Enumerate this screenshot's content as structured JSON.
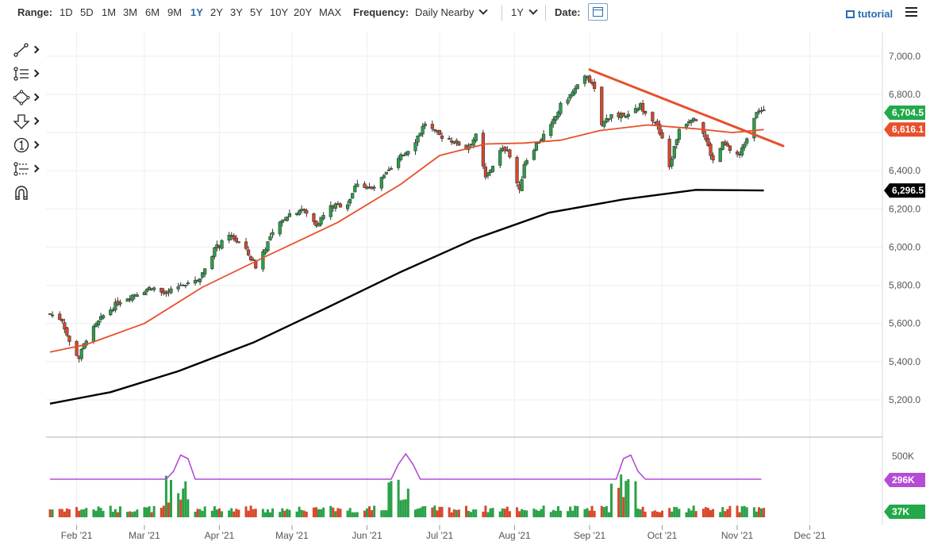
{
  "toolbar": {
    "range_label": "Range:",
    "ranges": [
      "1D",
      "5D",
      "1M",
      "3M",
      "6M",
      "9M",
      "1Y",
      "2Y",
      "3Y",
      "5Y",
      "10Y",
      "20Y",
      "MAX"
    ],
    "active_range": "1Y",
    "frequency_label": "Frequency:",
    "frequency_value": "Daily Nearby",
    "period_value": "1Y",
    "date_label": "Date:",
    "tutorial_label": "tutorial"
  },
  "tools": {
    "icons": [
      "trendline-icon",
      "fibonacci-icon",
      "shapes-icon",
      "arrow-down-icon",
      "annotation-number-icon",
      "measure-icon",
      "magnet-icon"
    ]
  },
  "colors": {
    "up": "#2aa148",
    "down": "#d9472b",
    "ma_short": "#e8502c",
    "ma_long": "#000000",
    "trendline": "#e8502c",
    "volume_avg": "#b54bd6",
    "last_price_tag": "#23a84a"
  },
  "chart_data": {
    "type": "candlestick",
    "x_range": [
      "2021-01-20",
      "2021-12-31"
    ],
    "y_range": [
      5100,
      7120
    ],
    "y_ticks": [
      "5,200.0",
      "5,400.0",
      "5,600.0",
      "5,800.0",
      "6,000.0",
      "6,200.0",
      "6,400.0",
      "6,600.0",
      "6,800.0",
      "7,000.0"
    ],
    "x_ticks": [
      {
        "label": "Feb '21",
        "date": "2021-02-01"
      },
      {
        "label": "Mar '21",
        "date": "2021-03-01"
      },
      {
        "label": "Apr '21",
        "date": "2021-04-01"
      },
      {
        "label": "May '21",
        "date": "2021-05-01"
      },
      {
        "label": "Jun '21",
        "date": "2021-06-01"
      },
      {
        "label": "Jul '21",
        "date": "2021-07-01"
      },
      {
        "label": "Aug '21",
        "date": "2021-08-01"
      },
      {
        "label": "Sep '21",
        "date": "2021-09-01"
      },
      {
        "label": "Oct '21",
        "date": "2021-10-01"
      },
      {
        "label": "Nov '21",
        "date": "2021-11-01"
      },
      {
        "label": "Dec '21",
        "date": "2021-12-01"
      }
    ],
    "close_path": [
      [
        "2021-01-21",
        5650
      ],
      [
        "2021-01-26",
        5620
      ],
      [
        "2021-01-29",
        5500
      ],
      [
        "2021-02-02",
        5420
      ],
      [
        "2021-02-05",
        5520
      ],
      [
        "2021-02-12",
        5640
      ],
      [
        "2021-02-19",
        5720
      ],
      [
        "2021-02-26",
        5760
      ],
      [
        "2021-03-04",
        5790
      ],
      [
        "2021-03-10",
        5750
      ],
      [
        "2021-03-17",
        5810
      ],
      [
        "2021-03-24",
        5840
      ],
      [
        "2021-03-30",
        5990
      ],
      [
        "2021-04-06",
        6060
      ],
      [
        "2021-04-12",
        5980
      ],
      [
        "2021-04-16",
        5900
      ],
      [
        "2021-04-22",
        6050
      ],
      [
        "2021-04-29",
        6170
      ],
      [
        "2021-05-05",
        6200
      ],
      [
        "2021-05-11",
        6120
      ],
      [
        "2021-05-17",
        6210
      ],
      [
        "2021-05-24",
        6230
      ],
      [
        "2021-05-28",
        6340
      ],
      [
        "2021-06-03",
        6300
      ],
      [
        "2021-06-09",
        6380
      ],
      [
        "2021-06-15",
        6470
      ],
      [
        "2021-06-21",
        6560
      ],
      [
        "2021-06-25",
        6650
      ],
      [
        "2021-06-30",
        6590
      ],
      [
        "2021-07-06",
        6560
      ],
      [
        "2021-07-12",
        6520
      ],
      [
        "2021-07-16",
        6580
      ],
      [
        "2021-07-20",
        6360
      ],
      [
        "2021-07-26",
        6500
      ],
      [
        "2021-07-29",
        6520
      ],
      [
        "2021-08-03",
        6290
      ],
      [
        "2021-08-05",
        6440
      ],
      [
        "2021-08-10",
        6540
      ],
      [
        "2021-08-16",
        6630
      ],
      [
        "2021-08-20",
        6740
      ],
      [
        "2021-08-25",
        6810
      ],
      [
        "2021-08-31",
        6900
      ],
      [
        "2021-09-03",
        6820
      ],
      [
        "2021-09-06",
        6640
      ],
      [
        "2021-09-10",
        6700
      ],
      [
        "2021-09-16",
        6680
      ],
      [
        "2021-09-22",
        6740
      ],
      [
        "2021-09-28",
        6660
      ],
      [
        "2021-10-01",
        6560
      ],
      [
        "2021-10-04",
        6420
      ],
      [
        "2021-10-08",
        6620
      ],
      [
        "2021-10-14",
        6690
      ],
      [
        "2021-10-18",
        6600
      ],
      [
        "2021-10-22",
        6450
      ],
      [
        "2021-10-26",
        6540
      ],
      [
        "2021-10-29",
        6510
      ],
      [
        "2021-11-02",
        6480
      ],
      [
        "2021-11-05",
        6580
      ],
      [
        "2021-11-09",
        6720
      ],
      [
        "2021-11-12",
        6704.5
      ]
    ],
    "series": [
      {
        "name": "",
        "current": "6,616.1",
        "values": [
          [
            "2021-01-21",
            5450
          ],
          [
            "2021-02-05",
            5490
          ],
          [
            "2021-03-01",
            5600
          ],
          [
            "2021-03-25",
            5790
          ],
          [
            "2021-04-20",
            5950
          ],
          [
            "2021-05-20",
            6130
          ],
          [
            "2021-06-15",
            6330
          ],
          [
            "2021-07-01",
            6480
          ],
          [
            "2021-07-20",
            6540
          ],
          [
            "2021-08-05",
            6545
          ],
          [
            "2021-08-20",
            6560
          ],
          [
            "2021-09-05",
            6610
          ],
          [
            "2021-09-25",
            6640
          ],
          [
            "2021-10-15",
            6620
          ],
          [
            "2021-10-30",
            6600
          ],
          [
            "2021-11-12",
            6616
          ]
        ]
      },
      {
        "name": "",
        "current": "6,296.5",
        "values": [
          [
            "2021-01-21",
            5180
          ],
          [
            "2021-02-15",
            5240
          ],
          [
            "2021-03-15",
            5350
          ],
          [
            "2021-04-15",
            5500
          ],
          [
            "2021-05-15",
            5680
          ],
          [
            "2021-06-15",
            5870
          ],
          [
            "2021-07-15",
            6040
          ],
          [
            "2021-08-15",
            6180
          ],
          [
            "2021-09-15",
            6250
          ],
          [
            "2021-10-15",
            6300
          ],
          [
            "2021-11-12",
            6296.5
          ]
        ]
      }
    ],
    "trendline": [
      [
        "2021-09-01",
        6930
      ],
      [
        "2021-11-20",
        6530
      ]
    ],
    "last_price": "6,704.5",
    "volume": {
      "y_ticks": [
        "500K"
      ],
      "average_label": "296K",
      "last_label": "37K"
    }
  }
}
